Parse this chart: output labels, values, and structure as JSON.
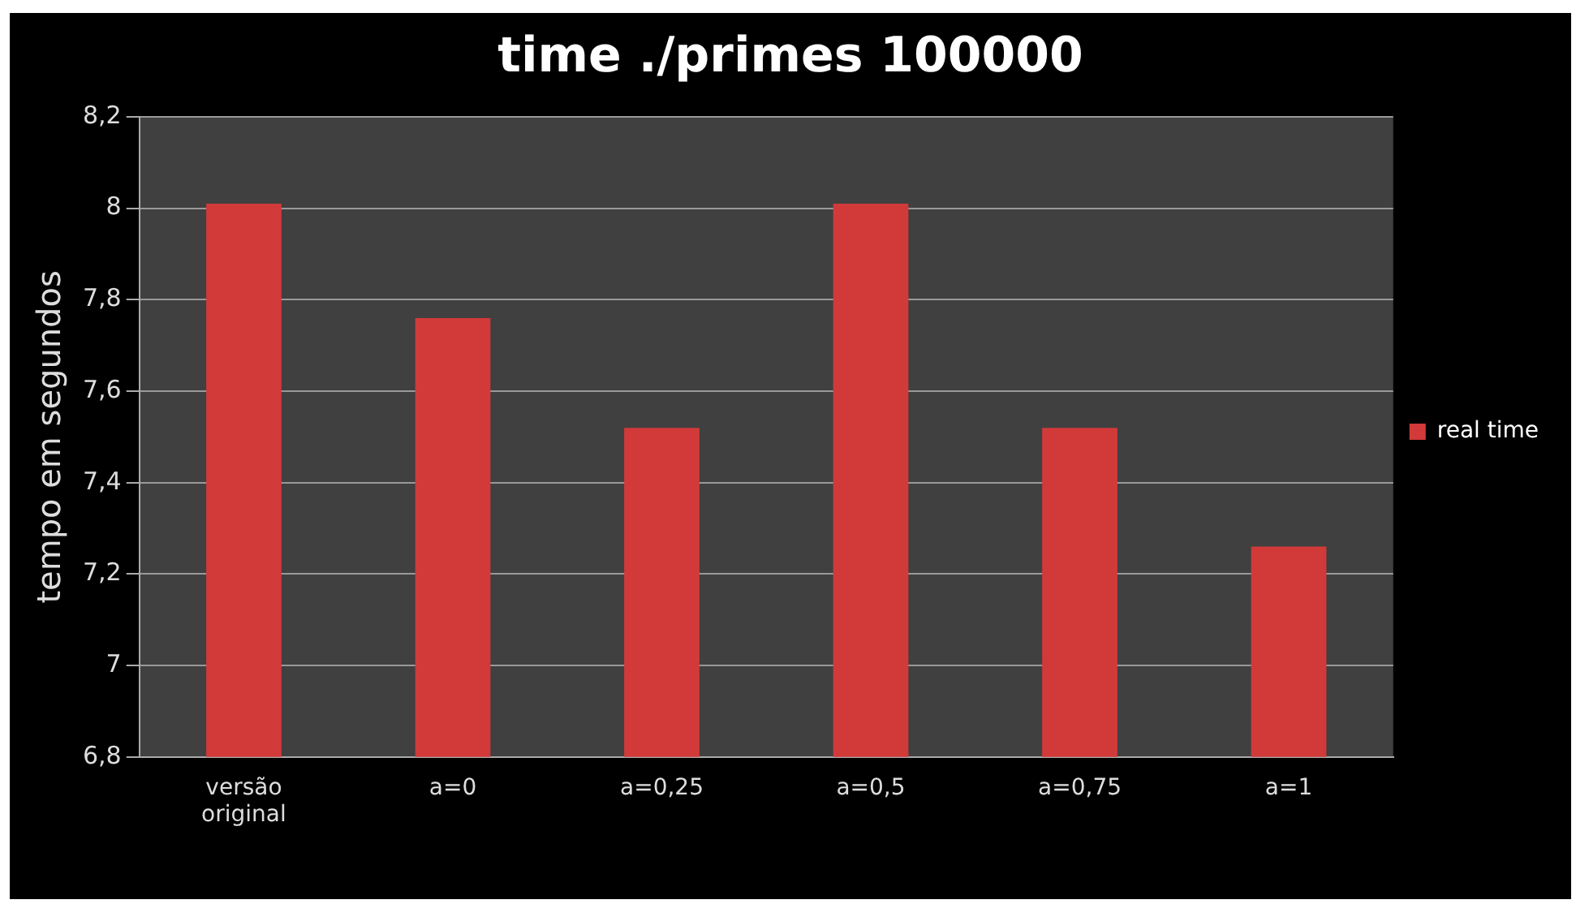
{
  "chart_data": {
    "type": "bar",
    "title": "time ./primes 100000",
    "ylabel": "tempo em segundos",
    "categories": [
      "versão original",
      "a=0",
      "a=0,25",
      "a=0,5",
      "a=0,75",
      "a=1"
    ],
    "series": [
      {
        "name": "real time",
        "color": "#d23a3a",
        "values": [
          8.01,
          7.76,
          7.52,
          8.01,
          7.52,
          7.26
        ]
      }
    ],
    "ylim": [
      6.8,
      8.2
    ],
    "yticks": [
      {
        "value": 6.8,
        "label": "6,8"
      },
      7,
      {
        "value": 7.2,
        "label": "7,2"
      },
      {
        "value": 7.4,
        "label": "7,4"
      },
      {
        "value": 7.6,
        "label": "7,6"
      },
      {
        "value": 7.8,
        "label": "7,8"
      },
      8,
      {
        "value": 8.2,
        "label": "8,2"
      }
    ],
    "grid": "y",
    "legend": "right"
  }
}
